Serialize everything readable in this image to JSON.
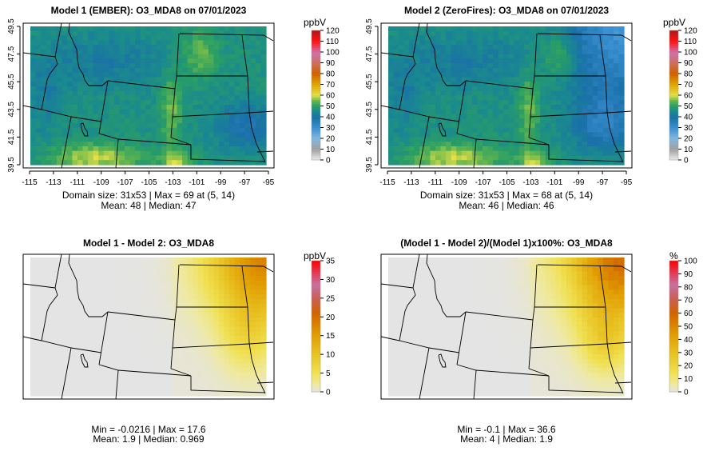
{
  "chart_data": [
    {
      "type": "heatmap",
      "title": "Model 1 (EMBER): O3_MDA8 on 07/01/2023",
      "variable": "O3_MDA8",
      "colorbar": {
        "unit": "ppbV",
        "range": [
          0,
          120
        ],
        "ticks": [
          0,
          10,
          20,
          30,
          40,
          50,
          60,
          70,
          80,
          90,
          100,
          110,
          120
        ],
        "palette": "ozone"
      },
      "x_ticks": [
        -115,
        -113,
        -111,
        -109,
        -107,
        -105,
        -103,
        -101,
        -99,
        -97,
        -95
      ],
      "y_ticks": [
        49.5,
        47.5,
        45.5,
        43.5,
        41.5,
        39.5
      ],
      "xlim": [
        -115,
        -95
      ],
      "ylim": [
        39.5,
        49.5
      ],
      "stats": {
        "line1": "Domain size: 31x53 | Max = 69 at (5, 14)",
        "line2": "Mean: 48 |  Median: 47"
      },
      "summary": {
        "domain": "31x53",
        "max": 69,
        "max_at": [
          5,
          14
        ],
        "mean": 48,
        "median": 47
      }
    },
    {
      "type": "heatmap",
      "title": "Model 2 (ZeroFires): O3_MDA8 on 07/01/2023",
      "variable": "O3_MDA8",
      "colorbar": {
        "unit": "ppbV",
        "range": [
          0,
          120
        ],
        "ticks": [
          0,
          10,
          20,
          30,
          40,
          50,
          60,
          70,
          80,
          90,
          100,
          110,
          120
        ],
        "palette": "ozone"
      },
      "x_ticks": [
        -115,
        -113,
        -111,
        -109,
        -107,
        -105,
        -103,
        -101,
        -99,
        -97,
        -95
      ],
      "y_ticks": [
        49.5,
        47.5,
        45.5,
        43.5,
        41.5,
        39.5
      ],
      "xlim": [
        -115,
        -95
      ],
      "ylim": [
        39.5,
        49.5
      ],
      "stats": {
        "line1": "Domain size: 31x53 | Max = 68 at (5, 14)",
        "line2": "Mean: 46 |  Median: 46"
      },
      "summary": {
        "domain": "31x53",
        "max": 68,
        "max_at": [
          5,
          14
        ],
        "mean": 46,
        "median": 46
      }
    },
    {
      "type": "heatmap",
      "title": "Model 1 - Model 2: O3_MDA8",
      "variable": "O3_MDA8",
      "colorbar": {
        "unit": "ppbV",
        "range": [
          0,
          35
        ],
        "ticks": [
          0,
          5,
          10,
          15,
          20,
          25,
          30,
          35
        ],
        "palette": "diff"
      },
      "x_ticks": [],
      "y_ticks": [],
      "stats": {
        "line1": "Min = -0.0216 | Max = 17.6",
        "line2": "Mean: 1.9 |  Median: 0.969"
      },
      "summary": {
        "min": -0.0216,
        "max": 17.6,
        "mean": 1.9,
        "median": 0.969
      }
    },
    {
      "type": "heatmap",
      "title": "(Model 1 - Model 2)/(Model 1)x100%: O3_MDA8",
      "variable": "O3_MDA8",
      "colorbar": {
        "unit": "%",
        "range": [
          0,
          100
        ],
        "ticks": [
          0,
          10,
          20,
          30,
          40,
          50,
          60,
          70,
          80,
          90,
          100
        ],
        "palette": "diff"
      },
      "x_ticks": [],
      "y_ticks": [],
      "stats": {
        "line1": "Min = -0.1 | Max = 36.6",
        "line2": "Mean: 4 |  Median: 1.9"
      },
      "summary": {
        "min": -0.1,
        "max": 36.6,
        "mean": 4,
        "median": 1.9
      }
    }
  ]
}
